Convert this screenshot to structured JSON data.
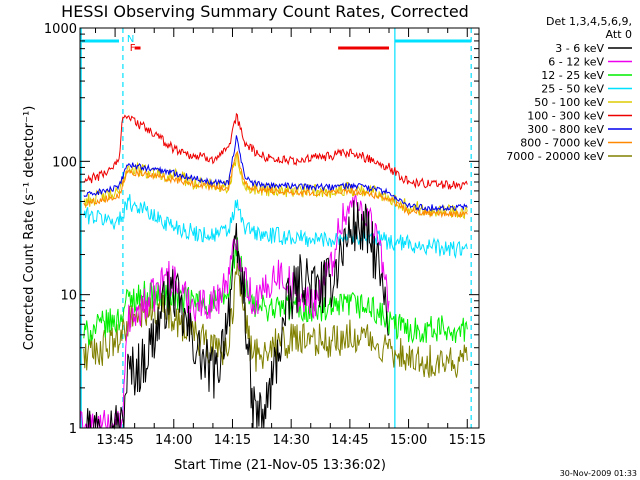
{
  "chart_data": {
    "type": "line",
    "title": "HESSI Observing Summary Count Rates, Corrected",
    "xlabel": "Start Time (21-Nov-05 13:36:02)",
    "ylabel": "Corrected Count Rate (s⁻¹ detector⁻¹)",
    "xlim": [
      "13:36:02",
      "15:18:00"
    ],
    "ylim": [
      1,
      1000
    ],
    "yscale": "log",
    "x_ticks": [
      "13:45",
      "14:00",
      "14:15",
      "14:30",
      "14:45",
      "15:00",
      "15:15"
    ],
    "y_ticks": [
      "1",
      "10",
      "100",
      "1000"
    ],
    "legend": {
      "header": [
        "Det 1,3,4,5,6,9,",
        "Att 0"
      ],
      "placement": "right"
    },
    "markers": {
      "N": "N",
      "F": "F",
      "night_color": "#00e0ff",
      "flare_color": "#ee0000"
    },
    "footer_timestamp": "30-Nov-2009 01:33",
    "series": [
      {
        "name": "3 - 6 keV",
        "color": "#000000",
        "x": [
          "13:36",
          "13:42",
          "13:47",
          "13:48",
          "13:52",
          "13:55",
          "13:58",
          "14:00",
          "14:02",
          "14:05",
          "14:08",
          "14:11",
          "14:14",
          "14:16",
          "14:18",
          "14:20",
          "14:23",
          "14:26",
          "14:29",
          "14:33",
          "14:36",
          "14:40",
          "14:43",
          "14:46",
          "14:49",
          "14:52",
          "14:53",
          "14:55"
        ],
        "y": [
          1,
          1,
          1,
          2.5,
          3,
          5,
          9,
          11,
          7,
          4.5,
          3,
          2.5,
          8,
          22,
          10,
          1.4,
          1.2,
          3,
          8,
          14,
          11,
          12,
          22,
          33,
          30,
          18,
          12,
          5
        ]
      },
      {
        "name": "6 - 12 keV",
        "color": "#ee00ee",
        "x": [
          "13:36",
          "13:42",
          "13:47",
          "13:48",
          "13:52",
          "13:55",
          "13:58",
          "14:00",
          "14:02",
          "14:05",
          "14:08",
          "14:11",
          "14:14",
          "14:16",
          "14:18",
          "14:20",
          "14:23",
          "14:26",
          "14:29",
          "14:33",
          "14:36",
          "14:40",
          "14:43",
          "14:46",
          "14:49",
          "14:52",
          "14:53",
          "14:55"
        ],
        "y": [
          1,
          1,
          1,
          6,
          8,
          10,
          14,
          13,
          10,
          8.5,
          8.5,
          9,
          14,
          25,
          15,
          9,
          10,
          15,
          13,
          9,
          9,
          16,
          38,
          48,
          42,
          28,
          18,
          9
        ]
      },
      {
        "name": "12 - 25 keV",
        "color": "#00ee00",
        "x": [
          "13:37",
          "13:42",
          "13:46",
          "13:48",
          "13:52",
          "13:55",
          "13:58",
          "14:00",
          "14:05",
          "14:10",
          "14:14",
          "14:16",
          "14:18",
          "14:20",
          "14:25",
          "14:30",
          "14:35",
          "14:40",
          "14:45",
          "14:50",
          "14:53",
          "14:55",
          "15:00",
          "15:05",
          "15:10",
          "15:15"
        ],
        "y": [
          5,
          6,
          6.5,
          9,
          10,
          10,
          9.5,
          9.5,
          9,
          8.5,
          10,
          24,
          12,
          8,
          8,
          8,
          7.5,
          7.5,
          8.5,
          8,
          7,
          6,
          5.5,
          5.5,
          5.5,
          5.5
        ]
      },
      {
        "name": "25 - 50 keV",
        "color": "#00e0ff",
        "x": [
          "13:37",
          "13:42",
          "13:46",
          "13:48",
          "13:52",
          "13:55",
          "14:00",
          "14:05",
          "14:10",
          "14:14",
          "14:16",
          "14:18",
          "14:22",
          "14:30",
          "14:35",
          "14:40",
          "14:45",
          "14:50",
          "14:55",
          "15:00",
          "15:05",
          "15:10",
          "15:15"
        ],
        "y": [
          40,
          37,
          35,
          50,
          45,
          38,
          33,
          29,
          28,
          30,
          48,
          32,
          28,
          27,
          26,
          26,
          28,
          27,
          25,
          24,
          23,
          22,
          22
        ]
      },
      {
        "name": "50 - 100 keV",
        "color": "#ddcc00",
        "x": [
          "13:37",
          "13:42",
          "13:46",
          "13:48",
          "13:52",
          "14:00",
          "14:05",
          "14:10",
          "14:14",
          "14:16",
          "14:18",
          "14:20",
          "14:30",
          "14:40",
          "14:45",
          "14:50",
          "14:55",
          "15:00",
          "15:05",
          "15:10",
          "15:15"
        ],
        "y": [
          50,
          55,
          57,
          90,
          85,
          78,
          70,
          66,
          65,
          110,
          70,
          63,
          60,
          60,
          62,
          60,
          55,
          45,
          44,
          43,
          42
        ]
      },
      {
        "name": "100 - 300 keV",
        "color": "#ee0000",
        "x": [
          "13:37",
          "13:42",
          "13:46",
          "13:47",
          "13:50",
          "13:55",
          "14:00",
          "14:05",
          "14:10",
          "14:14",
          "14:16",
          "14:18",
          "14:22",
          "14:30",
          "14:35",
          "14:40",
          "14:45",
          "14:50",
          "14:55",
          "15:00",
          "15:05",
          "15:10",
          "15:15"
        ],
        "y": [
          70,
          80,
          100,
          230,
          200,
          160,
          125,
          110,
          105,
          120,
          220,
          140,
          110,
          100,
          105,
          110,
          115,
          105,
          90,
          70,
          68,
          67,
          67
        ]
      },
      {
        "name": "300 - 800 keV",
        "color": "#0000ee",
        "x": [
          "13:37",
          "13:42",
          "13:46",
          "13:48",
          "13:52",
          "14:00",
          "14:05",
          "14:10",
          "14:14",
          "14:16",
          "14:18",
          "14:20",
          "14:30",
          "14:40",
          "14:45",
          "14:50",
          "14:55",
          "15:00",
          "15:05",
          "15:10",
          "15:15"
        ],
        "y": [
          55,
          60,
          63,
          95,
          90,
          82,
          75,
          70,
          70,
          150,
          80,
          68,
          65,
          64,
          66,
          63,
          58,
          46,
          45,
          45,
          45
        ]
      },
      {
        "name": "800 - 7000 keV",
        "color": "#ff8800",
        "x": [
          "13:37",
          "13:42",
          "13:46",
          "13:48",
          "13:52",
          "14:00",
          "14:05",
          "14:10",
          "14:14",
          "14:16",
          "14:18",
          "14:20",
          "14:30",
          "14:40",
          "14:45",
          "14:50",
          "14:55",
          "15:00",
          "15:05",
          "15:10",
          "15:15"
        ],
        "y": [
          48,
          52,
          55,
          85,
          80,
          73,
          68,
          64,
          63,
          120,
          72,
          62,
          59,
          58,
          60,
          57,
          52,
          42,
          41,
          40,
          40
        ]
      },
      {
        "name": "7000 - 20000 keV",
        "color": "#808000",
        "x": [
          "13:37",
          "13:42",
          "13:46",
          "13:48",
          "13:52",
          "13:55",
          "14:00",
          "14:05",
          "14:10",
          "14:14",
          "14:16",
          "14:18",
          "14:20",
          "14:25",
          "14:30",
          "14:35",
          "14:40",
          "14:45",
          "14:50",
          "14:53",
          "14:55",
          "15:00",
          "15:05",
          "15:10",
          "15:15"
        ],
        "y": [
          3.5,
          4,
          4.5,
          6,
          7,
          8,
          7,
          5,
          4,
          4,
          16,
          7,
          3.5,
          4,
          4.5,
          4.5,
          4.5,
          5,
          4.5,
          4,
          3.8,
          3.5,
          3.2,
          3.2,
          3.2
        ]
      }
    ]
  }
}
